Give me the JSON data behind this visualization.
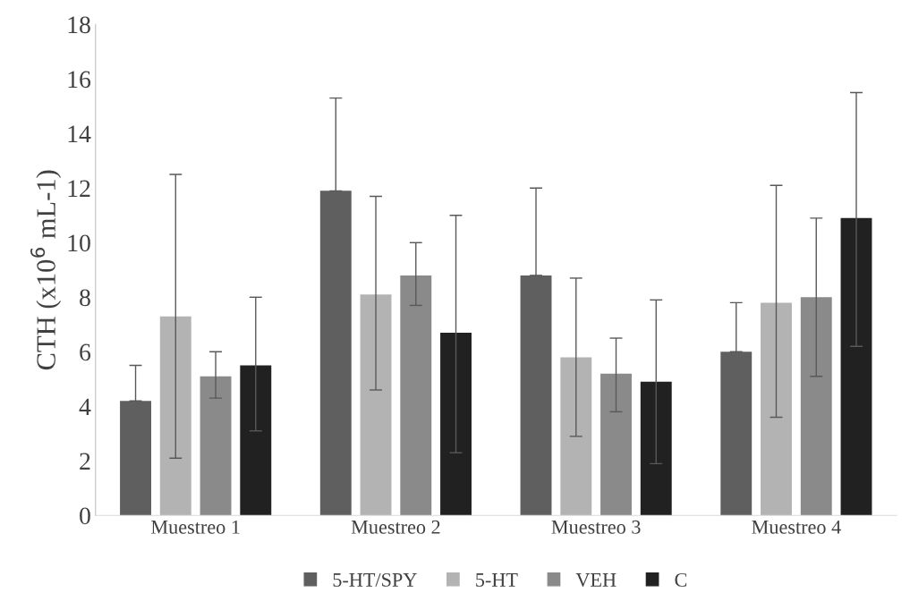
{
  "chart_data": {
    "type": "bar",
    "ylabel": "CTH (x10$^{6}$ mL-1)",
    "categories": [
      "Muestreo 1",
      "Muestreo 2",
      "Muestreo 3",
      "Muestreo 4"
    ],
    "series": [
      {
        "name": "5-HT/SPY",
        "color": "#5f5f5f",
        "values": [
          4.2,
          11.9,
          8.8,
          6.0
        ],
        "errors": [
          [
            4.2,
            5.5
          ],
          [
            11.9,
            15.3
          ],
          [
            8.8,
            12.0
          ],
          [
            6.0,
            7.8
          ]
        ]
      },
      {
        "name": "5-HT",
        "color": "#b3b3b3",
        "values": [
          7.3,
          8.1,
          5.8,
          7.8
        ],
        "errors": [
          [
            2.1,
            12.5
          ],
          [
            4.6,
            11.7
          ],
          [
            2.9,
            8.7
          ],
          [
            3.6,
            12.1
          ]
        ]
      },
      {
        "name": "VEH",
        "color": "#8a8a8a",
        "values": [
          5.1,
          8.8,
          5.2,
          8.0
        ],
        "errors": [
          [
            4.3,
            6.0
          ],
          [
            7.7,
            10.0
          ],
          [
            3.8,
            6.5
          ],
          [
            5.1,
            10.9
          ]
        ]
      },
      {
        "name": "C",
        "color": "#212121",
        "values": [
          5.5,
          6.7,
          4.9,
          10.9
        ],
        "errors": [
          [
            3.1,
            8.0
          ],
          [
            2.3,
            11.0
          ],
          [
            1.9,
            7.9
          ],
          [
            6.2,
            15.5
          ]
        ]
      }
    ],
    "ylim": [
      0,
      18
    ],
    "yticks": [
      0,
      2,
      4,
      6,
      8,
      10,
      12,
      14,
      16,
      18
    ],
    "grid": false,
    "legend": "bottom"
  }
}
